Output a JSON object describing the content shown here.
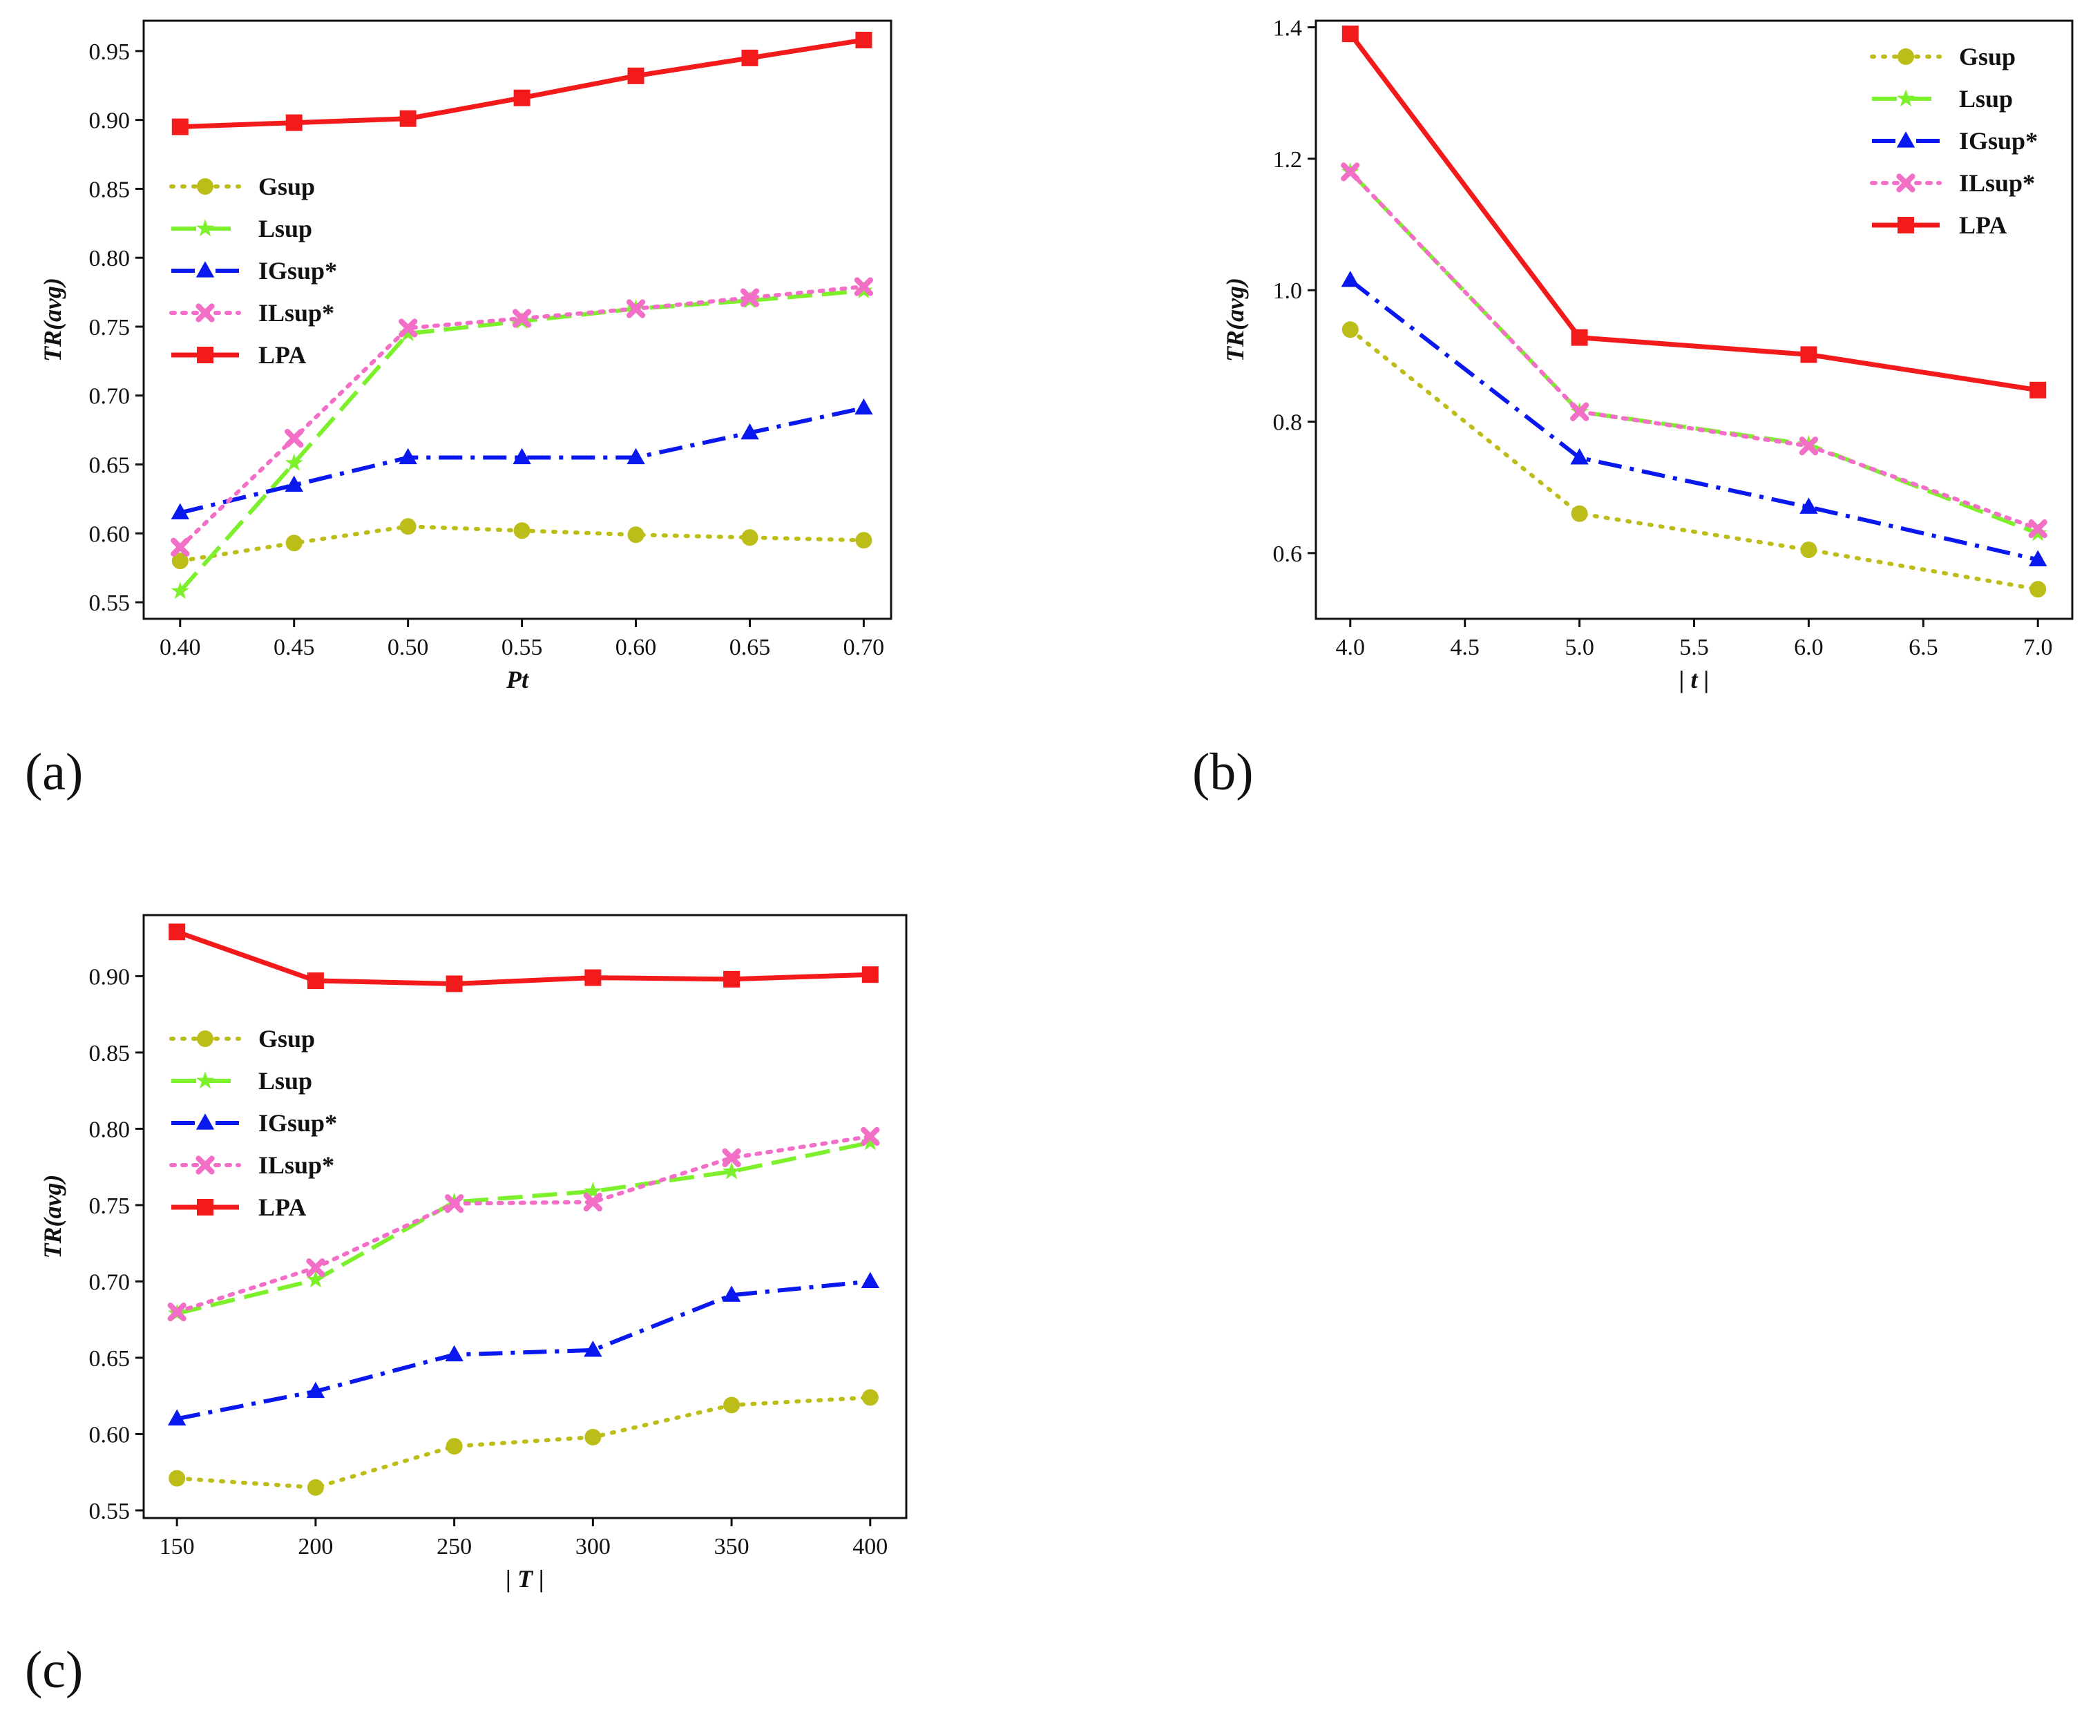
{
  "colors": {
    "Gsup": "#bdbd1a",
    "Lsup": "#7cf02a",
    "IGsup*": "#0a18f0",
    "ILsup*": "#f36fc7",
    "LPA": "#f21a1a"
  },
  "panel_labels": [
    "(a)",
    "(b)",
    "(c)"
  ],
  "chart_data": [
    {
      "type": "line",
      "label": "(a)",
      "xlabel": "Pt",
      "ylabel": "TR(avg)",
      "x": [
        0.4,
        0.45,
        0.5,
        0.55,
        0.6,
        0.65,
        0.7
      ],
      "xticks": [
        "0.40",
        "0.45",
        "0.50",
        "0.55",
        "0.60",
        "0.65",
        "0.70"
      ],
      "yticks": [
        "0.55",
        "0.60",
        "0.65",
        "0.70",
        "0.75",
        "0.80",
        "0.85",
        "0.90",
        "0.95"
      ],
      "xlim": [
        0.384,
        0.712
      ],
      "ylim": [
        0.538,
        0.972
      ],
      "legend_position": "center-left",
      "series": [
        {
          "name": "Gsup",
          "values": [
            0.58,
            0.593,
            0.605,
            0.602,
            0.599,
            0.597,
            0.595
          ]
        },
        {
          "name": "Lsup",
          "values": [
            0.558,
            0.651,
            0.745,
            0.754,
            0.763,
            0.769,
            0.776
          ]
        },
        {
          "name": "IGsup*",
          "values": [
            0.615,
            0.635,
            0.655,
            0.655,
            0.655,
            0.673,
            0.691
          ]
        },
        {
          "name": "ILsup*",
          "values": [
            0.59,
            0.669,
            0.749,
            0.756,
            0.763,
            0.771,
            0.779
          ]
        },
        {
          "name": "LPA",
          "values": [
            0.895,
            0.898,
            0.901,
            0.916,
            0.932,
            0.945,
            0.958
          ]
        }
      ]
    },
    {
      "type": "line",
      "label": "(b)",
      "xlabel": "| t |",
      "ylabel": "TR(avg)",
      "x": [
        4.0,
        5.0,
        6.0,
        7.0
      ],
      "xticks": [
        "4.0",
        "4.5",
        "5.0",
        "5.5",
        "6.0",
        "6.5",
        "7.0"
      ],
      "yticks": [
        "0.6",
        "0.8",
        "1.0",
        "1.2",
        "1.4"
      ],
      "xlim": [
        3.85,
        7.15
      ],
      "ylim": [
        0.5,
        1.41
      ],
      "legend_position": "top-right",
      "series": [
        {
          "name": "Gsup",
          "values": [
            0.94,
            0.66,
            0.605,
            0.545
          ]
        },
        {
          "name": "Lsup",
          "values": [
            1.18,
            0.815,
            0.765,
            0.63
          ]
        },
        {
          "name": "IGsup*",
          "values": [
            1.015,
            0.745,
            0.67,
            0.59
          ]
        },
        {
          "name": "ILsup*",
          "values": [
            1.18,
            0.815,
            0.763,
            0.637
          ]
        },
        {
          "name": "LPA",
          "values": [
            1.39,
            0.928,
            0.902,
            0.848
          ]
        }
      ]
    },
    {
      "type": "line",
      "label": "(c)",
      "xlabel": "| T |",
      "ylabel": "TR(avg)",
      "x": [
        150,
        200,
        250,
        300,
        350,
        400
      ],
      "xticks": [
        "150",
        "200",
        "250",
        "300",
        "350",
        "400"
      ],
      "yticks": [
        "0.55",
        "0.60",
        "0.65",
        "0.70",
        "0.75",
        "0.80",
        "0.85",
        "0.90"
      ],
      "xlim": [
        138,
        413
      ],
      "ylim": [
        0.545,
        0.94
      ],
      "legend_position": "top-left",
      "series": [
        {
          "name": "Gsup",
          "values": [
            0.571,
            0.565,
            0.592,
            0.598,
            0.619,
            0.624
          ]
        },
        {
          "name": "Lsup",
          "values": [
            0.679,
            0.701,
            0.752,
            0.759,
            0.772,
            0.791
          ]
        },
        {
          "name": "IGsup*",
          "values": [
            0.61,
            0.628,
            0.652,
            0.655,
            0.691,
            0.7
          ]
        },
        {
          "name": "ILsup*",
          "values": [
            0.68,
            0.709,
            0.751,
            0.752,
            0.781,
            0.795
          ]
        },
        {
          "name": "LPA",
          "values": [
            0.929,
            0.897,
            0.895,
            0.899,
            0.898,
            0.901
          ]
        }
      ]
    }
  ]
}
